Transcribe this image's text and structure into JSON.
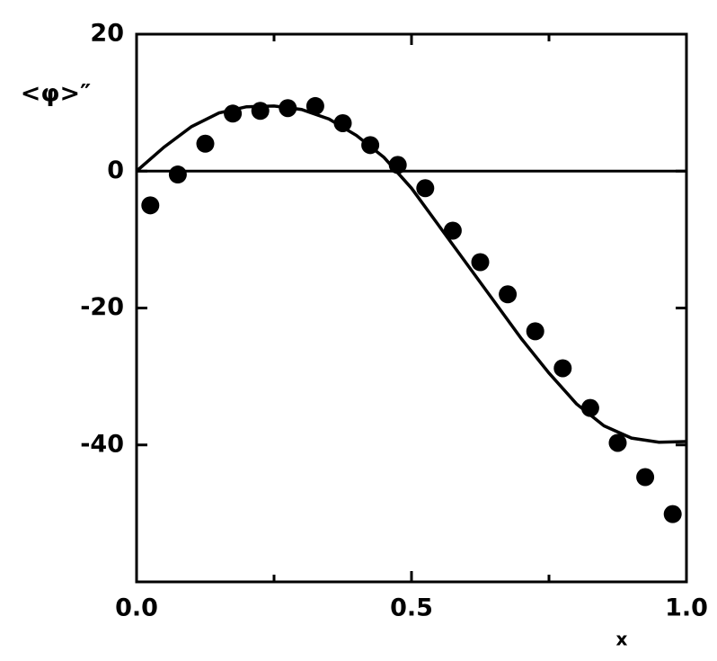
{
  "chart_data": {
    "type": "line",
    "ylabel": "<φ>″",
    "xlabel": "x",
    "xlim": [
      0,
      1
    ],
    "ylim": [
      -60,
      20
    ],
    "xticks": [
      {
        "value": 0,
        "label": "0.0"
      },
      {
        "value": 0.5,
        "label": "0.5"
      },
      {
        "value": 1,
        "label": "1.0"
      }
    ],
    "xminorticks": [
      0.25,
      0.75
    ],
    "yticks": [
      -40,
      -20,
      0,
      20
    ],
    "zero_line": true,
    "series": [
      {
        "kind": "scatter",
        "color": "#000000",
        "x": [
          0.025,
          0.075,
          0.125,
          0.175,
          0.225,
          0.275,
          0.325,
          0.375,
          0.425,
          0.475,
          0.525,
          0.575,
          0.625,
          0.675,
          0.725,
          0.775,
          0.825,
          0.875,
          0.925,
          0.975
        ],
        "values": [
          -5,
          -0.5,
          4,
          8.4,
          8.8,
          9.2,
          9.5,
          7,
          3.8,
          0.9,
          -2.5,
          -8.7,
          -13.3,
          -18,
          -23.4,
          -28.8,
          -34.6,
          -39.7,
          -44.7,
          -50.1
        ]
      },
      {
        "kind": "line",
        "color": "#000000",
        "x": [
          0,
          0.05,
          0.1,
          0.15,
          0.2,
          0.25,
          0.3,
          0.35,
          0.4,
          0.45,
          0.5,
          0.55,
          0.6,
          0.65,
          0.7,
          0.75,
          0.8,
          0.85,
          0.9,
          0.95,
          1.0
        ],
        "values": [
          0,
          3.5,
          6.5,
          8.5,
          9.4,
          9.5,
          9.0,
          7.6,
          5.2,
          2.0,
          -2.5,
          -8,
          -13.5,
          -19,
          -24.5,
          -29.5,
          -34,
          -37.2,
          -39,
          -39.6,
          -39.5
        ]
      }
    ]
  }
}
